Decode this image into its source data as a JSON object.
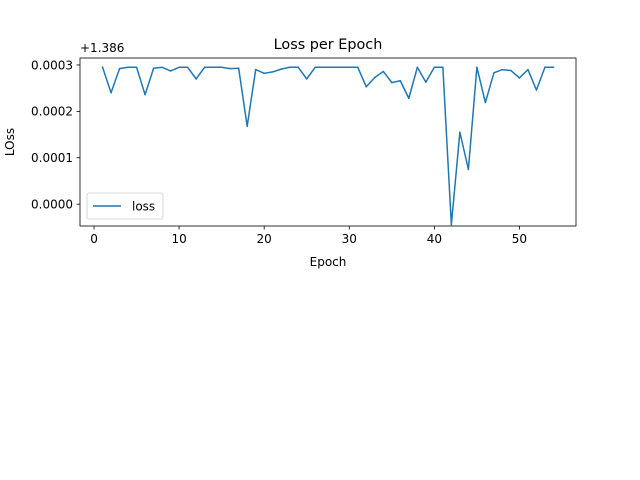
{
  "chart_data": {
    "type": "line",
    "title": "Loss per Epoch",
    "xlabel": "Epoch",
    "ylabel": "LOss",
    "offset_text": "+1.386",
    "y_offset": 1.386,
    "xlim": [
      -1.65,
      56.65
    ],
    "ylim": [
      -4.7e-05,
      0.000315
    ],
    "xticks": [
      0,
      10,
      20,
      30,
      40,
      50
    ],
    "xtick_labels": [
      "0",
      "10",
      "20",
      "30",
      "40",
      "50"
    ],
    "yticks": [
      0.0,
      0.0001,
      0.0002,
      0.0003
    ],
    "ytick_labels": [
      "0.0000",
      "0.0001",
      "0.0002",
      "0.0003"
    ],
    "grid": false,
    "legend_position": "lower-left",
    "series": [
      {
        "name": "loss",
        "color": "#1f77b4",
        "x": [
          1,
          2,
          3,
          4,
          5,
          6,
          7,
          8,
          9,
          10,
          11,
          12,
          13,
          14,
          15,
          16,
          17,
          18,
          19,
          20,
          21,
          22,
          23,
          24,
          25,
          26,
          27,
          28,
          29,
          30,
          31,
          32,
          33,
          34,
          35,
          36,
          37,
          38,
          39,
          40,
          41,
          42,
          43,
          44,
          45,
          46,
          47,
          48,
          49,
          50,
          51,
          52,
          53,
          54
        ],
        "y": [
          0.000295,
          0.00024,
          0.000292,
          0.000295,
          0.000295,
          0.000236,
          0.000293,
          0.000295,
          0.000287,
          0.000295,
          0.000295,
          0.00027,
          0.000295,
          0.000295,
          0.000295,
          0.000292,
          0.000293,
          0.000168,
          0.00029,
          0.000282,
          0.000285,
          0.000291,
          0.000295,
          0.000295,
          0.00027,
          0.000295,
          0.000295,
          0.000295,
          0.000295,
          0.000295,
          0.000295,
          0.000253,
          0.000273,
          0.000286,
          0.000262,
          0.000266,
          0.000228,
          0.000295,
          0.000263,
          0.000295,
          0.000295,
          -4.4e-05,
          0.000155,
          7.5e-05,
          0.000295,
          0.000219,
          0.000283,
          0.00029,
          0.000288,
          0.000272,
          0.00029,
          0.000246,
          0.000295,
          0.000295
        ]
      }
    ]
  }
}
